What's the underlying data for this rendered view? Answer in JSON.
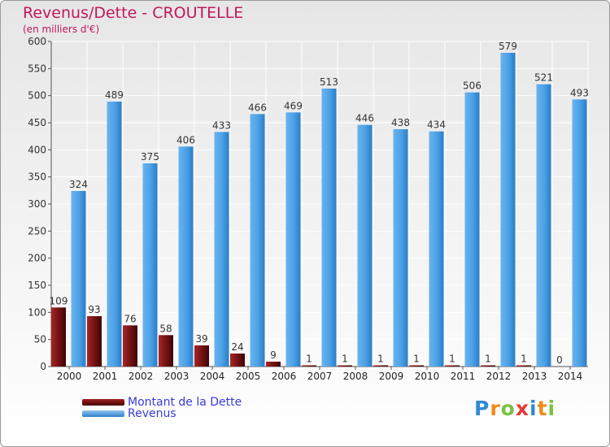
{
  "chart_data": {
    "type": "bar",
    "title": "Revenus/Dette - CROUTELLE",
    "subtitle": "(en milliers d'€)",
    "categories": [
      "2000",
      "2001",
      "2002",
      "2003",
      "2004",
      "2005",
      "2006",
      "2007",
      "2008",
      "2009",
      "2010",
      "2011",
      "2012",
      "2013",
      "2014"
    ],
    "series": [
      {
        "name": "Montant de la Dette",
        "color": "#7b1414",
        "values": [
          109,
          93,
          76,
          58,
          39,
          24,
          9,
          1,
          1,
          1,
          1,
          1,
          1,
          1,
          0
        ]
      },
      {
        "name": "Revenus",
        "color": "#4aa0e6",
        "values": [
          324,
          489,
          375,
          406,
          433,
          466,
          469,
          513,
          446,
          438,
          434,
          506,
          579,
          521,
          493
        ]
      }
    ],
    "yticks": [
      0,
      50,
      100,
      150,
      200,
      250,
      300,
      350,
      400,
      450,
      500,
      550,
      600
    ],
    "ylim": [
      0,
      600
    ],
    "grid": true,
    "legend_position": "bottom-left"
  },
  "logo": {
    "letters": [
      "P",
      "r",
      "o",
      "x",
      "i",
      "t",
      "i"
    ],
    "colors": [
      "#2e8bd6",
      "#f08a1c",
      "#7ac142",
      "#e53935",
      "#2e8bd6",
      "#f08a1c",
      "#7ac142"
    ]
  }
}
